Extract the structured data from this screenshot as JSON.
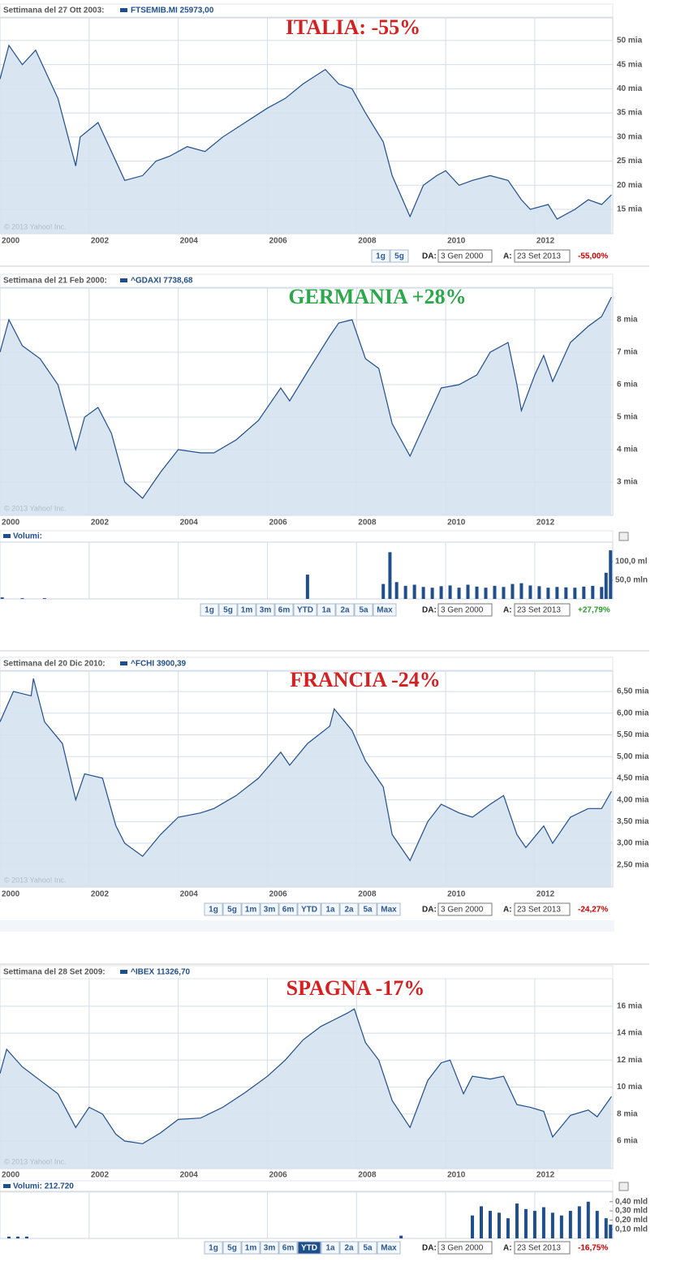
{
  "chart_data": [
    {
      "type": "area",
      "title": "ITALIA: -55%",
      "title_color": "#d42020",
      "subtitle": "Settimana del 27 Ott 2003:",
      "watermark": "© 2013 Yahoo! Inc.",
      "x": [
        2000.0,
        2000.2,
        2000.5,
        2000.8,
        2001.0,
        2001.3,
        2001.7,
        2001.8,
        2002.2,
        2002.5,
        2002.8,
        2003.2,
        2003.5,
        2003.8,
        2004.2,
        2004.6,
        2005.0,
        2005.5,
        2006.0,
        2006.4,
        2006.8,
        2007.3,
        2007.6,
        2007.9,
        2008.2,
        2008.6,
        2008.8,
        2009.2,
        2009.5,
        2009.8,
        2010.0,
        2010.3,
        2010.6,
        2011.0,
        2011.4,
        2011.7,
        2011.9,
        2012.3,
        2012.5,
        2012.9,
        2013.2,
        2013.5,
        2013.72
      ],
      "series": [
        {
          "name": "FTSEMIB.MI 25973,00",
          "color": "#1f4e8c",
          "values": [
            42000,
            49000,
            45000,
            48000,
            44000,
            38000,
            24000,
            30000,
            33000,
            27000,
            21000,
            22000,
            25000,
            26000,
            28000,
            27000,
            30000,
            33000,
            36000,
            38000,
            41000,
            44000,
            41000,
            40000,
            35000,
            29000,
            22000,
            13500,
            20000,
            22000,
            23000,
            20000,
            21000,
            22000,
            21000,
            17000,
            15000,
            16000,
            13000,
            15000,
            17000,
            16000,
            18000
          ]
        }
      ],
      "xlim": [
        2000,
        2013.75
      ],
      "xticks": [
        2000,
        2002,
        2004,
        2006,
        2008,
        2010,
        2012
      ],
      "ylim": [
        9950,
        54700
      ],
      "yticks": [
        {
          "value": 15000,
          "label": "15 mia"
        },
        {
          "value": 20000,
          "label": "20 mia"
        },
        {
          "value": 25000,
          "label": "25 mia"
        },
        {
          "value": 30000,
          "label": "30 mia"
        },
        {
          "value": 35000,
          "label": "35 mia"
        },
        {
          "value": 40000,
          "label": "40 mia"
        },
        {
          "value": 45000,
          "label": "45 mia"
        },
        {
          "value": 50000,
          "label": "50 mia"
        }
      ],
      "grid": true,
      "controls": {
        "buttons": [
          "1g",
          "5g"
        ],
        "from_label": "DA:",
        "from": "3 Gen 2000",
        "to_label": "A:",
        "to": "23 Set 2013",
        "change": "-55,00%",
        "change_color": "#cc0000"
      }
    },
    {
      "type": "area",
      "title": "GERMANIA  +28%",
      "title_color": "#2aa84a",
      "subtitle": "Settimana del 21 Feb 2000:",
      "watermark": "© 2013 Yahoo! Inc.",
      "x": [
        2000.0,
        2000.2,
        2000.5,
        2000.9,
        2001.3,
        2001.7,
        2001.9,
        2002.2,
        2002.5,
        2002.8,
        2003.2,
        2003.6,
        2004.0,
        2004.5,
        2004.8,
        2005.3,
        2005.8,
        2006.3,
        2006.5,
        2006.9,
        2007.4,
        2007.6,
        2007.9,
        2008.2,
        2008.5,
        2008.8,
        2009.2,
        2009.6,
        2009.9,
        2010.3,
        2010.7,
        2011.0,
        2011.4,
        2011.6,
        2011.7,
        2012.0,
        2012.2,
        2012.4,
        2012.8,
        2013.2,
        2013.5,
        2013.72
      ],
      "series": [
        {
          "name": "^GDAXI 7738,68",
          "color": "#1f4e8c",
          "values": [
            7000,
            8000,
            7200,
            6800,
            6000,
            4000,
            5000,
            5300,
            4500,
            3000,
            2500,
            3300,
            4000,
            3900,
            3900,
            4300,
            4900,
            5900,
            5500,
            6400,
            7500,
            7900,
            8000,
            6800,
            6500,
            4800,
            3800,
            5000,
            5900,
            6000,
            6300,
            7000,
            7300,
            6000,
            5200,
            6300,
            6900,
            6100,
            7300,
            7800,
            8100,
            8700
          ]
        }
      ],
      "xlim": [
        2000,
        2013.75
      ],
      "xticks": [
        2000,
        2002,
        2004,
        2006,
        2008,
        2010,
        2012
      ],
      "ylim": [
        1975,
        8975
      ],
      "yticks": [
        {
          "value": 3000,
          "label": "3 mia"
        },
        {
          "value": 4000,
          "label": "4 mia"
        },
        {
          "value": 5000,
          "label": "5 mia"
        },
        {
          "value": 6000,
          "label": "6 mia"
        },
        {
          "value": 7000,
          "label": "7 mia"
        },
        {
          "value": 8000,
          "label": "8 mia"
        }
      ],
      "grid": true,
      "volume": {
        "type": "bar",
        "name": "Volumi:",
        "color": "#1f4e8c",
        "x": [
          2000.05,
          2000.5,
          2001.0,
          2006.9,
          2008.6,
          2008.75,
          2008.9,
          2009.1,
          2009.3,
          2009.5,
          2009.7,
          2009.9,
          2010.1,
          2010.3,
          2010.5,
          2010.7,
          2010.9,
          2011.1,
          2011.3,
          2011.5,
          2011.7,
          2011.9,
          2012.1,
          2012.3,
          2012.5,
          2012.7,
          2012.9,
          2013.1,
          2013.3,
          2013.5,
          2013.6,
          2013.7
        ],
        "values": [
          4000000,
          2000000,
          2000000,
          65000000,
          40000000,
          125000000,
          45000000,
          35000000,
          38000000,
          32000000,
          30000000,
          34000000,
          36000000,
          30000000,
          38000000,
          33000000,
          30000000,
          35000000,
          32000000,
          40000000,
          42000000,
          36000000,
          34000000,
          30000000,
          32000000,
          31000000,
          30000000,
          33000000,
          35000000,
          32000000,
          70000000,
          130000000
        ],
        "ylim": [
          0,
          152000000
        ],
        "yticks": [
          {
            "value": 50000000,
            "label": "50,0 mln"
          },
          {
            "value": 100000000,
            "label": "100,0 ml"
          }
        ]
      },
      "controls": {
        "buttons": [
          "1g",
          "5g",
          "1m",
          "3m",
          "6m",
          "YTD",
          "1a",
          "2a",
          "5a",
          "Max"
        ],
        "from_label": "DA:",
        "from": "3 Gen 2000",
        "to_label": "A:",
        "to": "23 Set 2013",
        "change": "+27,79%",
        "change_color": "#2a9a2a"
      }
    },
    {
      "type": "area",
      "title": "FRANCIA   -24%",
      "title_color": "#d42020",
      "subtitle": "Settimana del 20 Dic 2010:",
      "watermark": "© 2013 Yahoo! Inc.",
      "x": [
        2000.0,
        2000.3,
        2000.7,
        2000.75,
        2001.0,
        2001.4,
        2001.7,
        2001.9,
        2002.3,
        2002.6,
        2002.8,
        2003.2,
        2003.6,
        2004.0,
        2004.5,
        2004.8,
        2005.3,
        2005.8,
        2006.3,
        2006.5,
        2006.9,
        2007.4,
        2007.5,
        2007.9,
        2008.2,
        2008.6,
        2008.8,
        2009.2,
        2009.6,
        2009.9,
        2010.3,
        2010.6,
        2011.0,
        2011.3,
        2011.6,
        2011.8,
        2012.2,
        2012.4,
        2012.8,
        2013.2,
        2013.5,
        2013.72
      ],
      "series": [
        {
          "name": "^FCHI 3900,39",
          "color": "#1f4e8c",
          "values": [
            5800,
            6500,
            6400,
            6800,
            5800,
            5300,
            4000,
            4600,
            4500,
            3400,
            3000,
            2700,
            3200,
            3600,
            3700,
            3800,
            4100,
            4500,
            5100,
            4800,
            5300,
            5700,
            6100,
            5600,
            4900,
            4300,
            3200,
            2600,
            3500,
            3900,
            3700,
            3600,
            3900,
            4100,
            3200,
            2900,
            3400,
            3000,
            3600,
            3800,
            3800,
            4200
          ]
        }
      ],
      "xlim": [
        2000,
        2013.75
      ],
      "xticks": [
        2000,
        2002,
        2004,
        2006,
        2008,
        2010,
        2012
      ],
      "ylim": [
        1990,
        6970
      ],
      "yticks": [
        {
          "value": 2500,
          "label": "2,50 mia"
        },
        {
          "value": 3000,
          "label": "3,00 mia"
        },
        {
          "value": 3500,
          "label": "3,50 mia"
        },
        {
          "value": 4000,
          "label": "4,00 mia"
        },
        {
          "value": 4500,
          "label": "4,50 mia"
        },
        {
          "value": 5000,
          "label": "5,00 mia"
        },
        {
          "value": 5500,
          "label": "5,50 mia"
        },
        {
          "value": 6000,
          "label": "6,00 mia"
        },
        {
          "value": 6500,
          "label": "6,50 mia"
        }
      ],
      "grid": true,
      "controls": {
        "buttons": [
          "1g",
          "5g",
          "1m",
          "3m",
          "6m",
          "YTD",
          "1a",
          "2a",
          "5a",
          "Max"
        ],
        "from_label": "DA:",
        "from": "3 Gen 2000",
        "to_label": "A:",
        "to": "23 Set 2013",
        "change": "-24,27%",
        "change_color": "#cc0000"
      }
    },
    {
      "type": "area",
      "title": "SPAGNA  -17%",
      "title_color": "#d42020",
      "subtitle": "Settimana del 28 Set 2009:",
      "watermark": "© 2013 Yahoo! Inc.",
      "x": [
        2000.0,
        2000.15,
        2000.5,
        2000.9,
        2001.3,
        2001.7,
        2002.0,
        2002.3,
        2002.6,
        2002.8,
        2003.2,
        2003.6,
        2004.0,
        2004.5,
        2005.0,
        2005.5,
        2006.0,
        2006.4,
        2006.8,
        2007.2,
        2007.5,
        2007.8,
        2007.95,
        2008.2,
        2008.5,
        2008.8,
        2009.2,
        2009.6,
        2009.9,
        2010.1,
        2010.4,
        2010.6,
        2011.0,
        2011.3,
        2011.6,
        2011.9,
        2012.2,
        2012.4,
        2012.8,
        2013.2,
        2013.4,
        2013.72
      ],
      "series": [
        {
          "name": "^IBEX 11326,70",
          "color": "#1f4e8c",
          "values": [
            11000,
            12800,
            11500,
            10500,
            9500,
            7000,
            8500,
            8000,
            6500,
            6000,
            5800,
            6600,
            7600,
            7700,
            8500,
            9600,
            10800,
            12000,
            13500,
            14500,
            15000,
            15500,
            15800,
            13300,
            12000,
            9000,
            7000,
            10500,
            11800,
            12000,
            9500,
            10800,
            10600,
            10800,
            8700,
            8500,
            8200,
            6300,
            7900,
            8300,
            7800,
            9300
          ]
        }
      ],
      "xlim": [
        2000,
        2013.75
      ],
      "xticks": [
        2000,
        2002,
        2004,
        2006,
        2008,
        2010,
        2012
      ],
      "ylim": [
        3950,
        18100
      ],
      "yticks": [
        {
          "value": 6000,
          "label": "6 mia"
        },
        {
          "value": 8000,
          "label": "8 mia"
        },
        {
          "value": 10000,
          "label": "10 mia"
        },
        {
          "value": 12000,
          "label": "12 mia"
        },
        {
          "value": 14000,
          "label": "14 mia"
        },
        {
          "value": 16000,
          "label": "16 mia"
        }
      ],
      "grid": true,
      "volume": {
        "type": "bar",
        "name": "Volumi: 212.720",
        "color": "#1f4e8c",
        "x": [
          2000.2,
          2000.4,
          2000.6,
          2009.0,
          2010.6,
          2010.8,
          2011.0,
          2011.2,
          2011.4,
          2011.6,
          2011.8,
          2012.0,
          2012.2,
          2012.4,
          2012.6,
          2012.8,
          2013.0,
          2013.2,
          2013.4,
          2013.6,
          2013.7
        ],
        "values": [
          20000000,
          20000000,
          20000000,
          30000000,
          250000000,
          350000000,
          300000000,
          280000000,
          220000000,
          380000000,
          320000000,
          300000000,
          340000000,
          280000000,
          250000000,
          300000000,
          350000000,
          400000000,
          300000000,
          220000000,
          150000000
        ],
        "ylim": [
          0,
          513000000
        ],
        "yticks": [
          {
            "value": 100000000,
            "label": "0,10 mld"
          },
          {
            "value": 200000000,
            "label": "0,20 mld"
          },
          {
            "value": 300000000,
            "label": "0,30 mld"
          },
          {
            "value": 400000000,
            "label": "0,40 mld"
          }
        ]
      },
      "controls": {
        "buttons": [
          "1g",
          "5g",
          "1m",
          "3m",
          "6m",
          "YTD",
          "1a",
          "2a",
          "5a",
          "Max"
        ],
        "active_button": 5,
        "from_label": "DA:",
        "from": "3 Gen 2000",
        "to_label": "A:",
        "to": "23 Set 2013",
        "change": "-16,75%",
        "change_color": "#cc0000"
      }
    }
  ]
}
